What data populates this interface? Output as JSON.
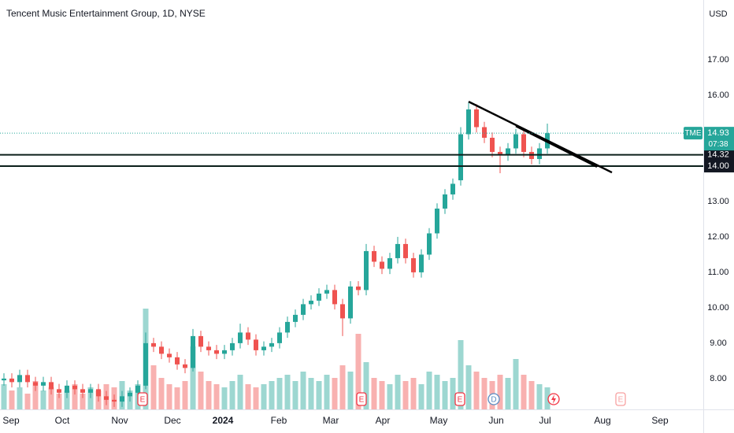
{
  "chart_data": {
    "type": "candlestick",
    "title": "Tencent Music Entertainment Group, 1D, NYSE",
    "currency": "USD",
    "symbol": "TME",
    "x": [
      0,
      1,
      2,
      3,
      4,
      5,
      6,
      7,
      8,
      9,
      10,
      11,
      12,
      13,
      14,
      15,
      16,
      17,
      18,
      19,
      20,
      21,
      22,
      23,
      24,
      25,
      26,
      27,
      28,
      29,
      30,
      31,
      32,
      33,
      34,
      35,
      36,
      37,
      38,
      39,
      40,
      41,
      42,
      43,
      44,
      45,
      46,
      47,
      48,
      49,
      50,
      51,
      52,
      53,
      54,
      55,
      56,
      57,
      58,
      59,
      60,
      61,
      62,
      63,
      64,
      65,
      66,
      67,
      68,
      69
    ],
    "open": [
      7.95,
      8.0,
      7.9,
      8.1,
      7.9,
      7.8,
      7.9,
      7.7,
      7.6,
      7.8,
      7.7,
      7.6,
      7.7,
      7.5,
      7.4,
      7.35,
      7.5,
      7.6,
      7.8,
      9.0,
      8.9,
      8.7,
      8.6,
      8.4,
      8.3,
      9.2,
      8.9,
      8.8,
      8.7,
      8.8,
      9.0,
      9.3,
      9.1,
      8.8,
      8.9,
      9.0,
      9.3,
      9.6,
      9.8,
      10.1,
      10.2,
      10.4,
      10.5,
      10.1,
      9.7,
      10.6,
      10.5,
      11.6,
      11.3,
      11.1,
      11.4,
      11.8,
      11.4,
      11.0,
      11.5,
      12.1,
      12.8,
      13.2,
      13.6,
      14.9,
      15.6,
      15.1,
      14.8,
      14.4,
      14.3,
      14.5,
      14.9,
      14.4,
      14.2,
      14.5
    ],
    "high": [
      8.15,
      8.15,
      8.25,
      8.25,
      8.05,
      8.05,
      8.05,
      7.85,
      7.95,
      7.95,
      7.85,
      7.85,
      7.85,
      7.65,
      7.55,
      7.65,
      7.75,
      7.95,
      9.3,
      9.15,
      9.05,
      8.85,
      8.75,
      8.55,
      9.4,
      9.35,
      9.05,
      8.95,
      8.95,
      9.15,
      9.55,
      9.45,
      9.25,
      9.05,
      9.15,
      9.45,
      9.75,
      9.95,
      10.25,
      10.35,
      10.55,
      10.65,
      10.65,
      10.25,
      10.75,
      10.75,
      11.8,
      11.75,
      11.45,
      11.55,
      12.0,
      11.95,
      11.55,
      11.65,
      12.25,
      12.95,
      13.35,
      13.65,
      15.1,
      15.8,
      15.75,
      15.25,
      14.95,
      14.55,
      14.65,
      15.05,
      15.05,
      14.55,
      14.65,
      15.2
    ],
    "low": [
      7.8,
      7.75,
      7.75,
      7.75,
      7.65,
      7.65,
      7.55,
      7.45,
      7.45,
      7.55,
      7.45,
      7.45,
      7.35,
      7.25,
      7.2,
      7.2,
      7.35,
      7.45,
      7.7,
      8.75,
      8.55,
      8.45,
      8.25,
      8.15,
      8.2,
      8.75,
      8.65,
      8.55,
      8.55,
      8.65,
      8.85,
      8.95,
      8.65,
      8.65,
      8.75,
      8.85,
      9.15,
      9.45,
      9.65,
      9.95,
      10.05,
      10.25,
      9.95,
      9.2,
      9.55,
      10.35,
      10.35,
      11.15,
      10.95,
      10.95,
      11.25,
      11.25,
      10.85,
      10.85,
      11.35,
      11.95,
      12.65,
      13.05,
      13.45,
      14.75,
      14.95,
      14.65,
      14.25,
      13.8,
      14.15,
      14.35,
      14.25,
      14.05,
      14.05,
      14.35
    ],
    "close": [
      8.0,
      7.9,
      8.1,
      7.9,
      7.8,
      7.9,
      7.7,
      7.6,
      7.8,
      7.7,
      7.6,
      7.7,
      7.5,
      7.4,
      7.35,
      7.5,
      7.6,
      7.8,
      9.0,
      8.9,
      8.7,
      8.6,
      8.4,
      8.3,
      9.2,
      8.9,
      8.8,
      8.7,
      8.8,
      9.0,
      9.3,
      9.1,
      8.8,
      8.9,
      9.0,
      9.3,
      9.6,
      9.8,
      10.1,
      10.2,
      10.4,
      10.5,
      10.1,
      9.7,
      10.6,
      10.5,
      11.6,
      11.3,
      11.1,
      11.4,
      11.8,
      11.4,
      11.0,
      11.5,
      12.1,
      12.8,
      13.2,
      13.5,
      14.9,
      15.6,
      15.1,
      14.8,
      14.4,
      14.3,
      14.5,
      14.9,
      14.4,
      14.2,
      14.5,
      14.93
    ],
    "volume": [
      8,
      6,
      7,
      5,
      9,
      6,
      7,
      5,
      6,
      8,
      5,
      7,
      6,
      8,
      7,
      9,
      6,
      8,
      32,
      14,
      10,
      8,
      7,
      9,
      20,
      12,
      9,
      8,
      7,
      9,
      11,
      8,
      7,
      8,
      9,
      10,
      11,
      9,
      12,
      10,
      9,
      11,
      10,
      14,
      12,
      24,
      15,
      10,
      9,
      8,
      11,
      9,
      10,
      8,
      12,
      11,
      9,
      10,
      22,
      14,
      12,
      10,
      9,
      11,
      10,
      16,
      11,
      9,
      8,
      7
    ],
    "up_color": "#26a69a",
    "down_color": "#ef5350",
    "vlim": [
      0,
      130
    ],
    "xlim": [
      -0.5,
      88.8
    ],
    "xticks": [
      {
        "value": 0.9,
        "label": "Sep"
      },
      {
        "value": 7.4,
        "label": "Oct"
      },
      {
        "value": 14.7,
        "label": "Nov"
      },
      {
        "value": 21.4,
        "label": "Dec"
      },
      {
        "value": 27.8,
        "label": "2024"
      },
      {
        "value": 34.9,
        "label": "Feb"
      },
      {
        "value": 41.5,
        "label": "Mar"
      },
      {
        "value": 48.1,
        "label": "Apr"
      },
      {
        "value": 55.2,
        "label": "May"
      },
      {
        "value": 62.5,
        "label": "Jun"
      },
      {
        "value": 68.7,
        "label": "Jul"
      },
      {
        "value": 76.0,
        "label": "Aug"
      },
      {
        "value": 83.3,
        "label": "Sep"
      }
    ],
    "ylim": [
      7.13,
      18.69
    ],
    "yticks": [
      {
        "value": 17,
        "label": "17.00"
      },
      {
        "value": 16,
        "label": "16.00"
      },
      {
        "value": 13,
        "label": "13.00"
      },
      {
        "value": 12,
        "label": "12.00"
      },
      {
        "value": 11,
        "label": "11.00"
      },
      {
        "value": 10,
        "label": "10.00"
      },
      {
        "value": 9,
        "label": "9.00"
      },
      {
        "value": 8,
        "label": "8.00"
      }
    ],
    "last_price": {
      "value": 14.93,
      "label": "14.93"
    },
    "countdown": "07:38",
    "hlines": [
      {
        "value": 14.32,
        "label": "14.32"
      },
      {
        "value": 14.0,
        "label": "14.00"
      }
    ],
    "trendlines": [
      {
        "x": [
          59,
          77.2
        ],
        "y": [
          15.82,
          13.82
        ]
      },
      {
        "x": [
          65,
          75.3
        ],
        "y": [
          15.13,
          13.98
        ]
      }
    ],
    "events": [
      {
        "x": 17.6,
        "label": "E"
      },
      {
        "x": 45.4,
        "label": "E"
      },
      {
        "x": 57.9,
        "label": "E"
      },
      {
        "x": 62.2,
        "label": "D"
      },
      {
        "x": 78.3,
        "label": "E"
      }
    ]
  }
}
